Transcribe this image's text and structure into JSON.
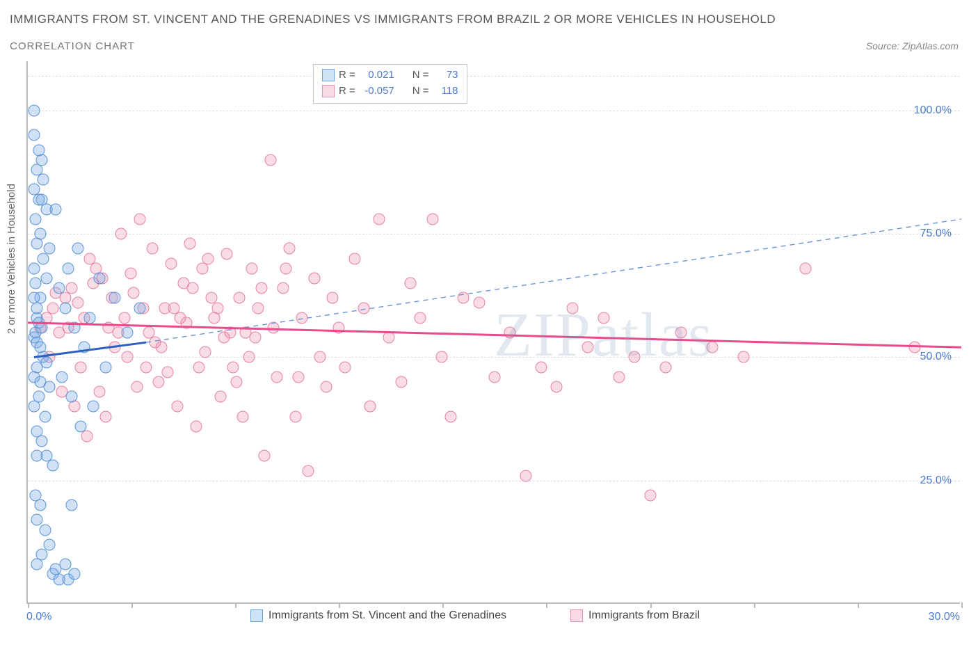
{
  "title": "IMMIGRANTS FROM ST. VINCENT AND THE GRENADINES VS IMMIGRANTS FROM BRAZIL 2 OR MORE VEHICLES IN HOUSEHOLD",
  "subtitle": "CORRELATION CHART",
  "source": "Source: ZipAtlas.com",
  "watermark": "ZIPatlas",
  "ylabel": "2 or more Vehicles in Household",
  "chart": {
    "type": "scatter",
    "xlim": [
      0,
      30
    ],
    "ylim": [
      0,
      110
    ],
    "x_ticks": [
      0,
      3.33,
      6.66,
      10,
      13.33,
      16.66,
      20,
      23.33,
      26.66,
      30
    ],
    "x_tick_labels": {
      "0": "0.0%",
      "30": "30.0%"
    },
    "y_gridlines": [
      25,
      50,
      75,
      100,
      107
    ],
    "y_tick_labels": {
      "25": "25.0%",
      "50": "50.0%",
      "75": "75.0%",
      "100": "100.0%"
    },
    "grid_color": "#dddddd",
    "axis_color": "#bbbbbb",
    "background_color": "#ffffff"
  },
  "series": [
    {
      "name": "Immigrants from St. Vincent and the Grenadines",
      "short": "svg",
      "fill": "rgba(120,170,230,0.35)",
      "stroke": "#5a93d6",
      "swatch_fill": "#cfe3f7",
      "swatch_stroke": "#6aa3e0",
      "R": "0.021",
      "N": "73",
      "trend": {
        "x1": 0.2,
        "y1": 50,
        "x2": 3.8,
        "y2": 53,
        "dashed": false,
        "color": "#2a5fbf",
        "width": 3
      },
      "trend_ext": {
        "x1": 3.8,
        "y1": 53,
        "x2": 30,
        "y2": 78,
        "dashed": true,
        "color": "#6a93d6",
        "width": 1.4
      },
      "points": [
        [
          0.2,
          54
        ],
        [
          0.3,
          58
        ],
        [
          0.25,
          55
        ],
        [
          0.3,
          60
        ],
        [
          0.4,
          62
        ],
        [
          0.35,
          57
        ],
        [
          0.45,
          56
        ],
        [
          0.3,
          53
        ],
        [
          0.5,
          50
        ],
        [
          0.6,
          49
        ],
        [
          0.3,
          48
        ],
        [
          0.2,
          46
        ],
        [
          0.4,
          45
        ],
        [
          0.7,
          44
        ],
        [
          0.35,
          42
        ],
        [
          0.2,
          40
        ],
        [
          0.55,
          38
        ],
        [
          0.3,
          35
        ],
        [
          0.45,
          33
        ],
        [
          0.6,
          30
        ],
        [
          0.8,
          28
        ],
        [
          0.25,
          22
        ],
        [
          0.4,
          20
        ],
        [
          0.3,
          17
        ],
        [
          0.55,
          15
        ],
        [
          0.7,
          12
        ],
        [
          0.45,
          10
        ],
        [
          0.3,
          8
        ],
        [
          0.8,
          6
        ],
        [
          1.0,
          5
        ],
        [
          1.3,
          5
        ],
        [
          1.5,
          6
        ],
        [
          0.9,
          7
        ],
        [
          1.2,
          8
        ],
        [
          1.4,
          20
        ],
        [
          0.2,
          68
        ],
        [
          0.5,
          70
        ],
        [
          0.3,
          73
        ],
        [
          0.7,
          72
        ],
        [
          0.4,
          75
        ],
        [
          0.25,
          78
        ],
        [
          0.6,
          80
        ],
        [
          0.35,
          82
        ],
        [
          0.2,
          84
        ],
        [
          0.5,
          86
        ],
        [
          0.3,
          88
        ],
        [
          0.45,
          90
        ],
        [
          0.2,
          95
        ],
        [
          0.35,
          92
        ],
        [
          0.25,
          65
        ],
        [
          1.0,
          64
        ],
        [
          1.3,
          68
        ],
        [
          1.6,
          72
        ],
        [
          1.2,
          60
        ],
        [
          1.5,
          56
        ],
        [
          1.8,
          52
        ],
        [
          2.0,
          58
        ],
        [
          2.3,
          66
        ],
        [
          1.1,
          46
        ],
        [
          1.4,
          42
        ],
        [
          1.7,
          36
        ],
        [
          2.1,
          40
        ],
        [
          2.5,
          48
        ],
        [
          2.8,
          62
        ],
        [
          3.2,
          55
        ],
        [
          3.6,
          60
        ],
        [
          0.2,
          100
        ],
        [
          0.45,
          82
        ],
        [
          0.9,
          80
        ],
        [
          0.3,
          30
        ],
        [
          0.2,
          62
        ],
        [
          0.6,
          66
        ],
        [
          0.4,
          52
        ]
      ]
    },
    {
      "name": "Immigrants from Brazil",
      "short": "brazil",
      "fill": "rgba(240,140,170,0.30)",
      "stroke": "#e67fa5",
      "swatch_fill": "#fbdbe6",
      "swatch_stroke": "#ec93b4",
      "R": "-0.057",
      "N": "118",
      "trend": {
        "x1": 0,
        "y1": 57,
        "x2": 30,
        "y2": 52,
        "dashed": false,
        "color": "#e84b8a",
        "width": 3
      },
      "points": [
        [
          0.4,
          56
        ],
        [
          0.6,
          58
        ],
        [
          0.8,
          60
        ],
        [
          1.0,
          55
        ],
        [
          1.2,
          62
        ],
        [
          1.4,
          64
        ],
        [
          1.6,
          61
        ],
        [
          1.8,
          58
        ],
        [
          2.0,
          70
        ],
        [
          2.2,
          68
        ],
        [
          2.4,
          66
        ],
        [
          2.6,
          56
        ],
        [
          2.8,
          52
        ],
        [
          3.0,
          75
        ],
        [
          3.2,
          50
        ],
        [
          3.4,
          63
        ],
        [
          3.6,
          78
        ],
        [
          3.8,
          48
        ],
        [
          4.0,
          72
        ],
        [
          4.2,
          45
        ],
        [
          4.4,
          60
        ],
        [
          4.6,
          69
        ],
        [
          4.8,
          40
        ],
        [
          5.0,
          65
        ],
        [
          5.2,
          73
        ],
        [
          5.4,
          36
        ],
        [
          5.6,
          68
        ],
        [
          5.8,
          70
        ],
        [
          6.0,
          58
        ],
        [
          6.2,
          42
        ],
        [
          6.4,
          71
        ],
        [
          6.6,
          48
        ],
        [
          6.8,
          62
        ],
        [
          7.0,
          55
        ],
        [
          7.2,
          68
        ],
        [
          7.4,
          60
        ],
        [
          7.6,
          30
        ],
        [
          7.8,
          90
        ],
        [
          8.0,
          46
        ],
        [
          8.2,
          64
        ],
        [
          8.4,
          72
        ],
        [
          8.6,
          38
        ],
        [
          8.8,
          58
        ],
        [
          9.0,
          27
        ],
        [
          9.2,
          66
        ],
        [
          9.4,
          50
        ],
        [
          9.6,
          44
        ],
        [
          9.8,
          62
        ],
        [
          10.0,
          56
        ],
        [
          10.2,
          48
        ],
        [
          10.5,
          70
        ],
        [
          10.8,
          60
        ],
        [
          11.0,
          40
        ],
        [
          11.3,
          78
        ],
        [
          11.6,
          54
        ],
        [
          12.0,
          45
        ],
        [
          12.3,
          65
        ],
        [
          12.6,
          58
        ],
        [
          13.0,
          78
        ],
        [
          13.3,
          50
        ],
        [
          13.6,
          38
        ],
        [
          14.0,
          62
        ],
        [
          14.5,
          61
        ],
        [
          15.0,
          46
        ],
        [
          15.5,
          55
        ],
        [
          16.0,
          26
        ],
        [
          16.5,
          48
        ],
        [
          17.0,
          44
        ],
        [
          17.5,
          60
        ],
        [
          18.0,
          52
        ],
        [
          18.5,
          58
        ],
        [
          19.0,
          46
        ],
        [
          19.5,
          50
        ],
        [
          20.0,
          22
        ],
        [
          20.5,
          48
        ],
        [
          21.0,
          55
        ],
        [
          22.0,
          52
        ],
        [
          23.0,
          50
        ],
        [
          25.0,
          68
        ],
        [
          28.5,
          52
        ],
        [
          1.1,
          43
        ],
        [
          1.5,
          40
        ],
        [
          1.9,
          34
        ],
        [
          2.3,
          43
        ],
        [
          2.7,
          62
        ],
        [
          3.1,
          58
        ],
        [
          3.5,
          44
        ],
        [
          3.9,
          55
        ],
        [
          4.3,
          52
        ],
        [
          4.7,
          60
        ],
        [
          5.1,
          57
        ],
        [
          5.5,
          48
        ],
        [
          5.9,
          62
        ],
        [
          6.3,
          54
        ],
        [
          6.7,
          45
        ],
        [
          7.1,
          50
        ],
        [
          7.5,
          64
        ],
        [
          7.9,
          56
        ],
        [
          8.3,
          68
        ],
        [
          8.7,
          46
        ],
        [
          0.7,
          50
        ],
        [
          0.9,
          63
        ],
        [
          1.3,
          56
        ],
        [
          1.7,
          48
        ],
        [
          2.1,
          65
        ],
        [
          2.5,
          38
        ],
        [
          2.9,
          55
        ],
        [
          3.3,
          67
        ],
        [
          3.7,
          60
        ],
        [
          4.1,
          53
        ],
        [
          4.5,
          47
        ],
        [
          4.9,
          58
        ],
        [
          5.3,
          64
        ],
        [
          5.7,
          51
        ],
        [
          6.1,
          60
        ],
        [
          6.5,
          55
        ],
        [
          6.9,
          38
        ],
        [
          7.3,
          54
        ]
      ]
    }
  ],
  "legend_stats_title": {
    "R_label": "R =",
    "N_label": "N ="
  },
  "legend_bottom": [
    {
      "series": 0
    },
    {
      "series": 1
    }
  ]
}
